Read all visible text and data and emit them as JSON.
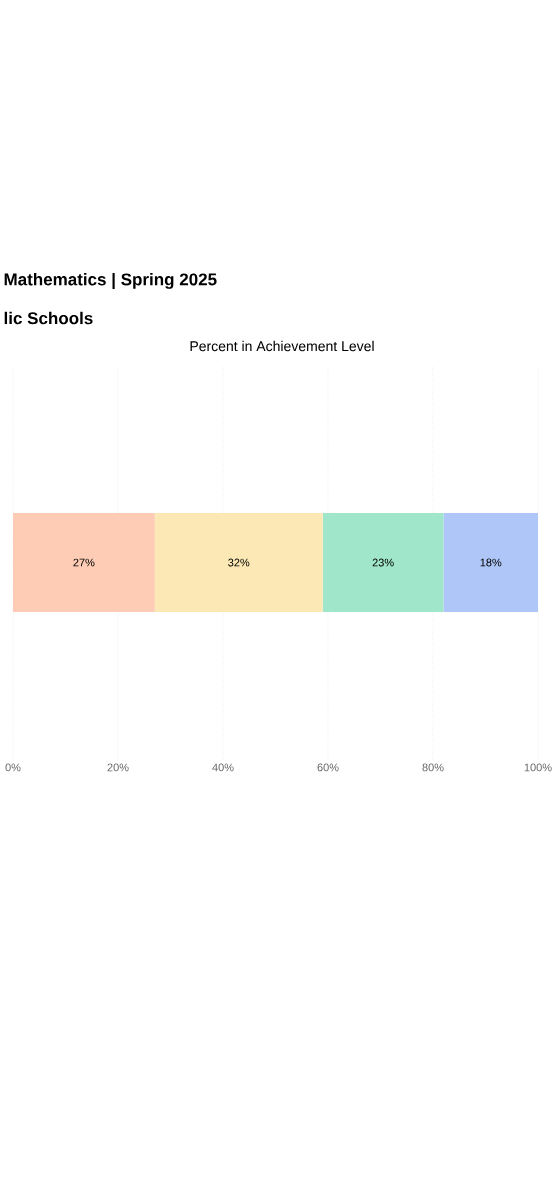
{
  "chart_data": {
    "type": "bar",
    "orientation": "horizontal",
    "stacked": true,
    "title": "Percent in Achievement Level",
    "subtitle": "Mathematics | Spring 2025",
    "annotations": [
      "lic Schools"
    ],
    "categories": [
      null
    ],
    "series": [
      {
        "color": "#fecbb4",
        "values": [
          27
        ],
        "value_labels": [
          "27%"
        ]
      },
      {
        "color": "#fce8b4",
        "values": [
          32
        ],
        "value_labels": [
          "32%"
        ]
      },
      {
        "color": "#9fe6cb",
        "values": [
          23
        ],
        "value_labels": [
          "23%"
        ]
      },
      {
        "color": "#aec7f8",
        "values": [
          18
        ],
        "value_labels": [
          "18%"
        ]
      }
    ],
    "xlim": [
      0,
      100
    ],
    "xticks": [
      {
        "value": 0,
        "label": "0%"
      },
      {
        "value": 20,
        "label": "20%"
      },
      {
        "value": 40,
        "label": "40%"
      },
      {
        "value": 60,
        "label": "60%"
      },
      {
        "value": 80,
        "label": "80%"
      },
      {
        "value": 100,
        "label": "100%"
      }
    ],
    "grid": "x",
    "tick_labels": "x"
  }
}
